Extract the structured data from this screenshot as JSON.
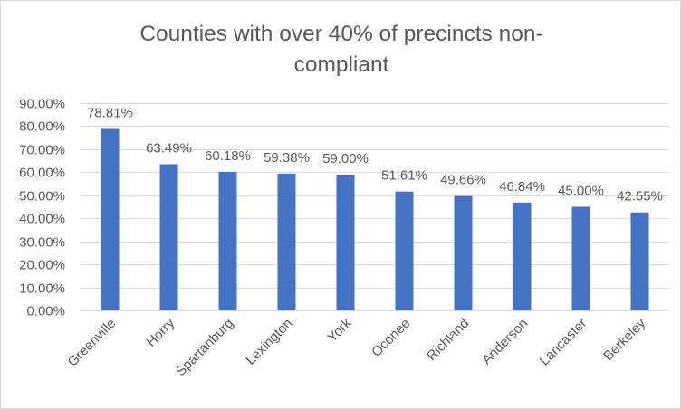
{
  "chart_data": {
    "type": "bar",
    "title_lines": [
      "Counties with over 40% of precincts non-",
      "compliant"
    ],
    "categories": [
      "Greenville",
      "Horry",
      "Spartanburg",
      "Lexington",
      "York",
      "Oconee",
      "Richland",
      "Anderson",
      "Lancaster",
      "Berkeley"
    ],
    "values": [
      78.81,
      63.49,
      60.18,
      59.38,
      59.0,
      51.61,
      49.66,
      46.84,
      45.0,
      42.55
    ],
    "data_labels": [
      "78.81%",
      "63.49%",
      "60.18%",
      "59.38%",
      "59.00%",
      "51.61%",
      "49.66%",
      "46.84%",
      "45.00%",
      "42.55%"
    ],
    "ylim": [
      0,
      90
    ],
    "y_ticks": [
      0,
      10,
      20,
      30,
      40,
      50,
      60,
      70,
      80,
      90
    ],
    "y_tick_labels": [
      "0.00%",
      "10.00%",
      "20.00%",
      "30.00%",
      "40.00%",
      "50.00%",
      "60.00%",
      "70.00%",
      "80.00%",
      "90.00%"
    ],
    "gridlines": true,
    "legend": "none",
    "colors": {
      "bar": "#4472C4",
      "text": "#595959",
      "grid": "#d9d9d9"
    }
  }
}
